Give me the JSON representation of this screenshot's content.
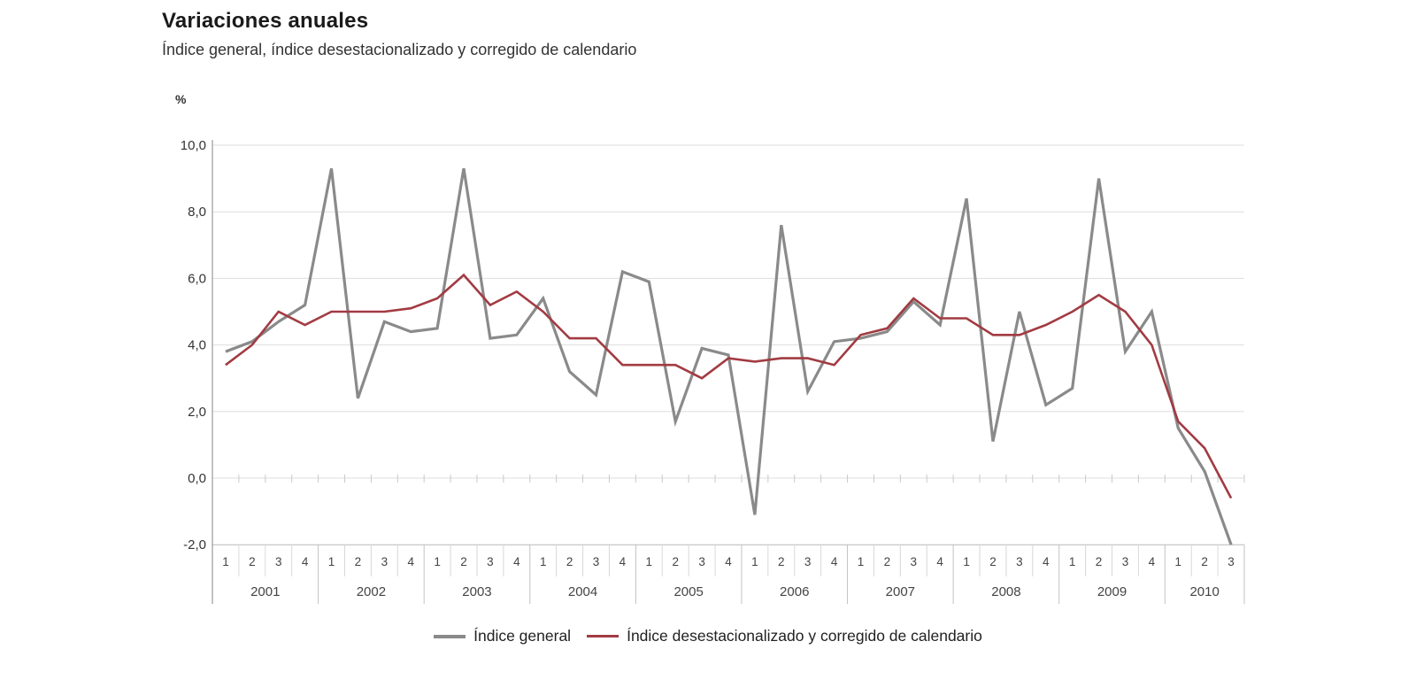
{
  "header": {
    "title": "Variaciones anuales",
    "subtitle": "Índice general, índice desestacionalizado y corregido de calendario"
  },
  "chart_data": {
    "type": "line",
    "title": "Variaciones anuales",
    "subtitle": "Índice general, índice desestacionalizado y corregido de calendario",
    "unit_label": "%",
    "ylabel": "%",
    "ylim": [
      -2,
      10
    ],
    "ytick_step": 2,
    "ytick_labels": [
      "10,0",
      "8,0",
      "6,0",
      "4,0",
      "2,0",
      "0,0",
      "-2,0"
    ],
    "grid": true,
    "legend_position": "bottom",
    "x_structure": "quarters grouped by year",
    "years": [
      {
        "label": "2001",
        "quarter_labels": [
          "1",
          "2",
          "3",
          "4"
        ]
      },
      {
        "label": "2002",
        "quarter_labels": [
          "1",
          "2",
          "3",
          "4"
        ]
      },
      {
        "label": "2003",
        "quarter_labels": [
          "1",
          "2",
          "3",
          "4"
        ]
      },
      {
        "label": "2004",
        "quarter_labels": [
          "1",
          "2",
          "3",
          "4"
        ]
      },
      {
        "label": "2005",
        "quarter_labels": [
          "1",
          "2",
          "3",
          "4"
        ]
      },
      {
        "label": "2006",
        "quarter_labels": [
          "1",
          "2",
          "3",
          "4"
        ]
      },
      {
        "label": "2007",
        "quarter_labels": [
          "1",
          "2",
          "3",
          "4"
        ]
      },
      {
        "label": "2008",
        "quarter_labels": [
          "1",
          "2",
          "3",
          "4"
        ]
      },
      {
        "label": "2009",
        "quarter_labels": [
          "1",
          "2",
          "3",
          "4"
        ]
      },
      {
        "label": "2010",
        "quarter_labels": [
          "1",
          "2",
          "3"
        ]
      }
    ],
    "series": [
      {
        "name": "Índice general",
        "color": "#8a8a8a",
        "values": [
          3.8,
          4.1,
          4.7,
          5.2,
          9.3,
          2.4,
          4.7,
          4.4,
          4.5,
          9.3,
          4.2,
          4.3,
          5.4,
          3.2,
          2.5,
          6.2,
          5.9,
          1.7,
          3.9,
          3.7,
          -1.1,
          7.6,
          2.6,
          4.1,
          4.2,
          4.4,
          5.3,
          4.6,
          8.4,
          1.1,
          5.0,
          2.2,
          2.7,
          9.0,
          3.8,
          5.0,
          1.5,
          0.2,
          -2.0
        ]
      },
      {
        "name": "Índice desestacionalizado y corregido de calendario",
        "color": "#a23b42",
        "values": [
          3.4,
          4.0,
          5.0,
          4.6,
          5.0,
          5.0,
          5.0,
          5.1,
          5.4,
          6.1,
          5.2,
          5.6,
          5.0,
          4.2,
          4.2,
          3.4,
          3.4,
          3.4,
          3.0,
          3.6,
          3.5,
          3.6,
          3.6,
          3.4,
          4.3,
          4.5,
          5.4,
          4.8,
          4.8,
          4.3,
          4.3,
          4.6,
          5.0,
          5.5,
          5.0,
          4.0,
          1.7,
          0.9,
          -0.6
        ]
      }
    ]
  }
}
